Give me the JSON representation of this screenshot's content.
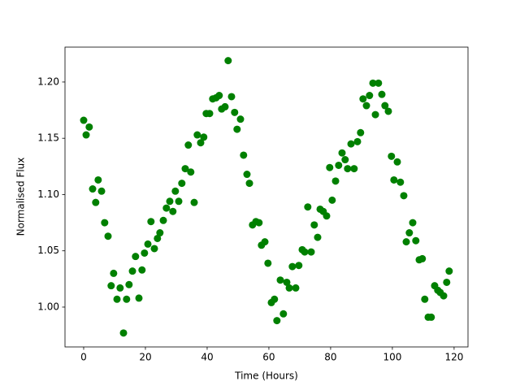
{
  "chart_data": {
    "type": "scatter",
    "xlabel": "Time (Hours)",
    "ylabel": "Normalised Flux",
    "color": "#008000",
    "x": [
      0,
      0.8,
      1.8,
      2.9,
      3.9,
      4.7,
      5.8,
      6.8,
      7.9,
      8.9,
      9.7,
      10.8,
      11.8,
      12.9,
      13.9,
      14.7,
      15.8,
      16.8,
      17.9,
      18.9,
      19.7,
      20.8,
      21.8,
      22.9,
      23.9,
      24.7,
      25.8,
      26.8,
      27.9,
      28.9,
      29.7,
      30.8,
      31.8,
      32.9,
      33.9,
      34.7,
      35.8,
      36.8,
      37.9,
      38.9,
      39.7,
      40.8,
      41.8,
      42.9,
      43.9,
      44.7,
      45.8,
      46.8,
      47.9,
      48.9,
      49.7,
      50.8,
      51.8,
      52.9,
      53.7,
      54.7,
      55.8,
      56.8,
      57.6,
      58.7,
      59.7,
      60.8,
      61.8,
      62.6,
      63.7,
      64.7,
      65.8,
      66.6,
      67.6,
      68.7,
      69.7,
      70.8,
      71.6,
      72.6,
      73.7,
      74.7,
      75.8,
      76.6,
      77.6,
      78.7,
      79.7,
      80.5,
      81.6,
      82.6,
      83.7,
      84.7,
      85.5,
      86.6,
      87.6,
      88.7,
      89.7,
      90.5,
      91.6,
      92.6,
      93.7,
      94.5,
      95.5,
      96.6,
      97.6,
      98.7,
      99.7,
      100.5,
      101.6,
      102.6,
      103.7,
      104.5,
      105.5,
      106.6,
      107.6,
      108.7,
      109.7,
      110.5,
      111.6,
      112.6,
      113.7,
      114.7,
      115.5,
      116.6,
      117.6,
      118.4
    ],
    "values": [
      1.166,
      1.153,
      1.16,
      1.105,
      1.093,
      1.113,
      1.103,
      1.075,
      1.063,
      1.019,
      1.03,
      1.007,
      1.017,
      0.977,
      1.007,
      1.02,
      1.032,
      1.045,
      1.008,
      1.033,
      1.048,
      1.056,
      1.076,
      1.052,
      1.061,
      1.066,
      1.077,
      1.088,
      1.094,
      1.085,
      1.103,
      1.094,
      1.11,
      1.123,
      1.144,
      1.12,
      1.093,
      1.153,
      1.146,
      1.151,
      1.172,
      1.172,
      1.185,
      1.186,
      1.188,
      1.176,
      1.178,
      1.219,
      1.187,
      1.173,
      1.158,
      1.167,
      1.135,
      1.118,
      1.11,
      1.073,
      1.076,
      1.075,
      1.055,
      1.058,
      1.039,
      1.004,
      1.007,
      0.988,
      1.024,
      0.994,
      1.022,
      1.017,
      1.036,
      1.017,
      1.037,
      1.051,
      1.049,
      1.089,
      1.049,
      1.073,
      1.062,
      1.087,
      1.085,
      1.081,
      1.124,
      1.095,
      1.112,
      1.126,
      1.137,
      1.131,
      1.123,
      1.145,
      1.123,
      1.147,
      1.155,
      1.185,
      1.179,
      1.188,
      1.199,
      1.171,
      1.199,
      1.189,
      1.179,
      1.174,
      1.134,
      1.113,
      1.129,
      1.111,
      1.099,
      1.058,
      1.066,
      1.075,
      1.059,
      1.042,
      1.043,
      1.007,
      0.991,
      0.991,
      1.019,
      1.015,
      1.013,
      1.01,
      1.022,
      1.032
    ],
    "xlim": [
      -6.05,
      124.5
    ],
    "ylim": [
      0.9646,
      1.231
    ],
    "xticks": [
      0,
      20,
      40,
      60,
      80,
      100,
      120
    ],
    "yticks": [
      {
        "value": 1,
        "label": "1.00"
      },
      {
        "value": 1.05,
        "label": "1.05"
      },
      {
        "value": 1.1,
        "label": "1.10"
      },
      {
        "value": 1.15,
        "label": "1.15"
      },
      {
        "value": 1.2,
        "label": "1.20"
      }
    ]
  }
}
